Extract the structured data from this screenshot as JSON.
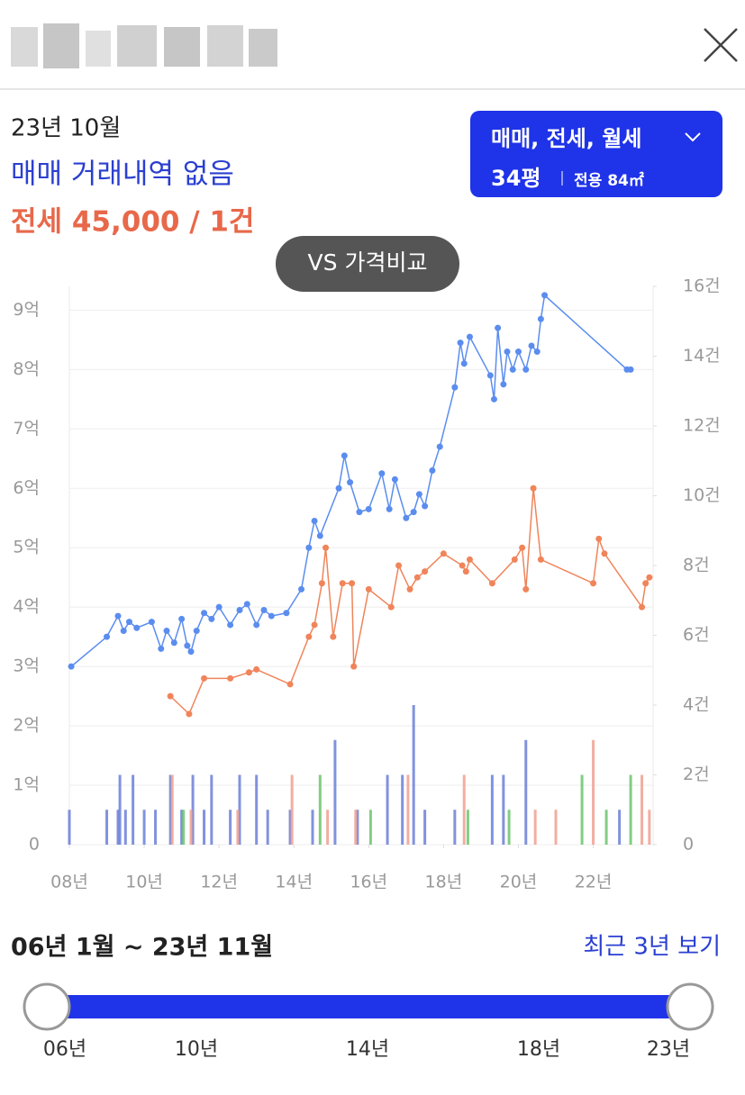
{
  "summary": {
    "date": "23년 10월",
    "sale": "매매 거래내역 없음",
    "jeonse": "전세 45,000 / 1건"
  },
  "filter": {
    "types": "매매, 전세, 월세",
    "size": "34평",
    "area": "전용 84㎡"
  },
  "compare_button": "VS 가격비교",
  "chart_data": {
    "type": "combo",
    "xlim": [
      2008,
      2023.6
    ],
    "xticks": [
      {
        "value": 2008,
        "label": "08년"
      },
      {
        "value": 2010,
        "label": "10년"
      },
      {
        "value": 2012,
        "label": "12년"
      },
      {
        "value": 2014,
        "label": "14년"
      },
      {
        "value": 2016,
        "label": "16년"
      },
      {
        "value": 2018,
        "label": "18년"
      },
      {
        "value": 2020,
        "label": "20년"
      },
      {
        "value": 2022,
        "label": "22년"
      }
    ],
    "ylim": [
      0,
      9.4
    ],
    "yticks": [
      0,
      {
        "value": 1,
        "label": "1억"
      },
      {
        "value": 2,
        "label": "2억"
      },
      {
        "value": 3,
        "label": "3억"
      },
      {
        "value": 4,
        "label": "4억"
      },
      {
        "value": 5,
        "label": "5억"
      },
      {
        "value": 6,
        "label": "6억"
      },
      {
        "value": 7,
        "label": "7억"
      },
      {
        "value": 8,
        "label": "8억"
      },
      {
        "value": 9,
        "label": "9억"
      }
    ],
    "y2lim": [
      0,
      16
    ],
    "y2ticks": [
      0,
      {
        "value": 2,
        "label": "2건"
      },
      {
        "value": 4,
        "label": "4건"
      },
      {
        "value": 6,
        "label": "6건"
      },
      {
        "value": 8,
        "label": "8건"
      },
      {
        "value": 10,
        "label": "10건"
      },
      {
        "value": 12,
        "label": "12건"
      },
      {
        "value": 14,
        "label": "14건"
      },
      {
        "value": 16,
        "label": "16건"
      }
    ],
    "grid": true,
    "series": [
      {
        "type": "line",
        "color": "#5b8def",
        "x": [
          2008.05,
          2009.0,
          2009.3,
          2009.45,
          2009.6,
          2009.8,
          2010.2,
          2010.45,
          2010.6,
          2010.8,
          2011.0,
          2011.15,
          2011.25,
          2011.4,
          2011.6,
          2011.8,
          2012.0,
          2012.3,
          2012.55,
          2012.75,
          2013.0,
          2013.2,
          2013.4,
          2013.8,
          2014.2,
          2014.4,
          2014.55,
          2014.7,
          2015.2,
          2015.35,
          2015.5,
          2015.75,
          2016.0,
          2016.35,
          2016.55,
          2016.7,
          2017.0,
          2017.2,
          2017.35,
          2017.5,
          2017.7,
          2017.9,
          2018.3,
          2018.45,
          2018.55,
          2018.7,
          2019.25,
          2019.35,
          2019.45,
          2019.6,
          2019.7,
          2019.85,
          2020.0,
          2020.2,
          2020.35,
          2020.5,
          2020.6,
          2020.7,
          2022.9,
          2023.0
        ],
        "values": [
          3.0,
          3.5,
          3.85,
          3.6,
          3.75,
          3.65,
          3.75,
          3.3,
          3.6,
          3.4,
          3.8,
          3.35,
          3.25,
          3.6,
          3.9,
          3.8,
          4.0,
          3.7,
          3.95,
          4.05,
          3.7,
          3.95,
          3.85,
          3.9,
          4.3,
          5.0,
          5.45,
          5.2,
          6.0,
          6.55,
          6.1,
          5.6,
          5.65,
          6.25,
          5.65,
          6.15,
          5.5,
          5.6,
          5.9,
          5.7,
          6.3,
          6.7,
          7.7,
          8.45,
          8.1,
          8.55,
          7.9,
          7.5,
          8.7,
          7.75,
          8.3,
          8.0,
          8.3,
          8.0,
          8.4,
          8.3,
          8.85,
          9.25,
          8.0,
          8.0
        ]
      },
      {
        "type": "line",
        "color": "#f0845a",
        "x": [
          2010.7,
          2011.2,
          2011.6,
          2012.3,
          2012.8,
          2013.0,
          2013.9,
          2014.4,
          2014.55,
          2014.75,
          2014.85,
          2015.05,
          2015.3,
          2015.55,
          2015.6,
          2016.0,
          2016.6,
          2016.8,
          2017.1,
          2017.3,
          2017.5,
          2018.0,
          2018.5,
          2018.6,
          2018.7,
          2019.3,
          2019.9,
          2020.1,
          2020.2,
          2020.4,
          2020.6,
          2022.0,
          2022.15,
          2022.3,
          2023.3,
          2023.4,
          2023.5
        ],
        "values": [
          2.5,
          2.2,
          2.8,
          2.8,
          2.9,
          2.95,
          2.7,
          3.5,
          3.7,
          4.4,
          5.0,
          3.5,
          4.4,
          4.4,
          3.0,
          4.3,
          4.0,
          4.7,
          4.3,
          4.5,
          4.6,
          4.9,
          4.7,
          4.6,
          4.8,
          4.4,
          4.8,
          5.0,
          4.3,
          6.0,
          4.8,
          4.4,
          5.15,
          4.9,
          4.0,
          4.4,
          4.5
        ]
      },
      {
        "type": "bar",
        "axis": "y2",
        "color": "#6b7fd8",
        "x": [
          2008.0,
          2009.0,
          2009.3,
          2009.35,
          2009.5,
          2009.7,
          2010.0,
          2010.3,
          2010.7,
          2011.0,
          2011.3,
          2011.6,
          2011.8,
          2012.3,
          2012.55,
          2013.0,
          2013.3,
          2013.9,
          2014.5,
          2015.1,
          2015.7,
          2016.5,
          2016.9,
          2017.2,
          2017.5,
          2018.3,
          2019.3,
          2019.6,
          2020.2,
          2022.7
        ],
        "values": [
          1,
          1,
          1,
          2,
          1,
          2,
          1,
          1,
          2,
          1,
          2,
          1,
          2,
          1,
          2,
          2,
          1,
          1,
          1,
          3,
          1,
          2,
          2,
          4,
          1,
          1,
          2,
          2,
          3,
          1
        ]
      },
      {
        "type": "bar",
        "axis": "y2",
        "color": "#f0a090",
        "x": [
          2010.75,
          2011.25,
          2012.5,
          2013.95,
          2014.9,
          2015.65,
          2017.05,
          2018.55,
          2020.45,
          2021.0,
          2022.0,
          2023.3,
          2023.5
        ],
        "values": [
          2,
          1,
          1,
          2,
          1,
          1,
          2,
          2,
          1,
          1,
          3,
          2,
          1
        ]
      },
      {
        "type": "bar",
        "axis": "y2",
        "color": "#6cc46c",
        "x": [
          2011.05,
          2014.7,
          2016.05,
          2018.65,
          2019.75,
          2021.7,
          2022.35,
          2023.0
        ],
        "values": [
          1,
          2,
          1,
          1,
          1,
          2,
          1,
          2
        ]
      }
    ]
  },
  "range": {
    "label": "06년 1월 ~ 23년 11월",
    "recent": "최근 3년 보기",
    "ticks": [
      "06년",
      "10년",
      "14년",
      "18년",
      "23년"
    ]
  }
}
